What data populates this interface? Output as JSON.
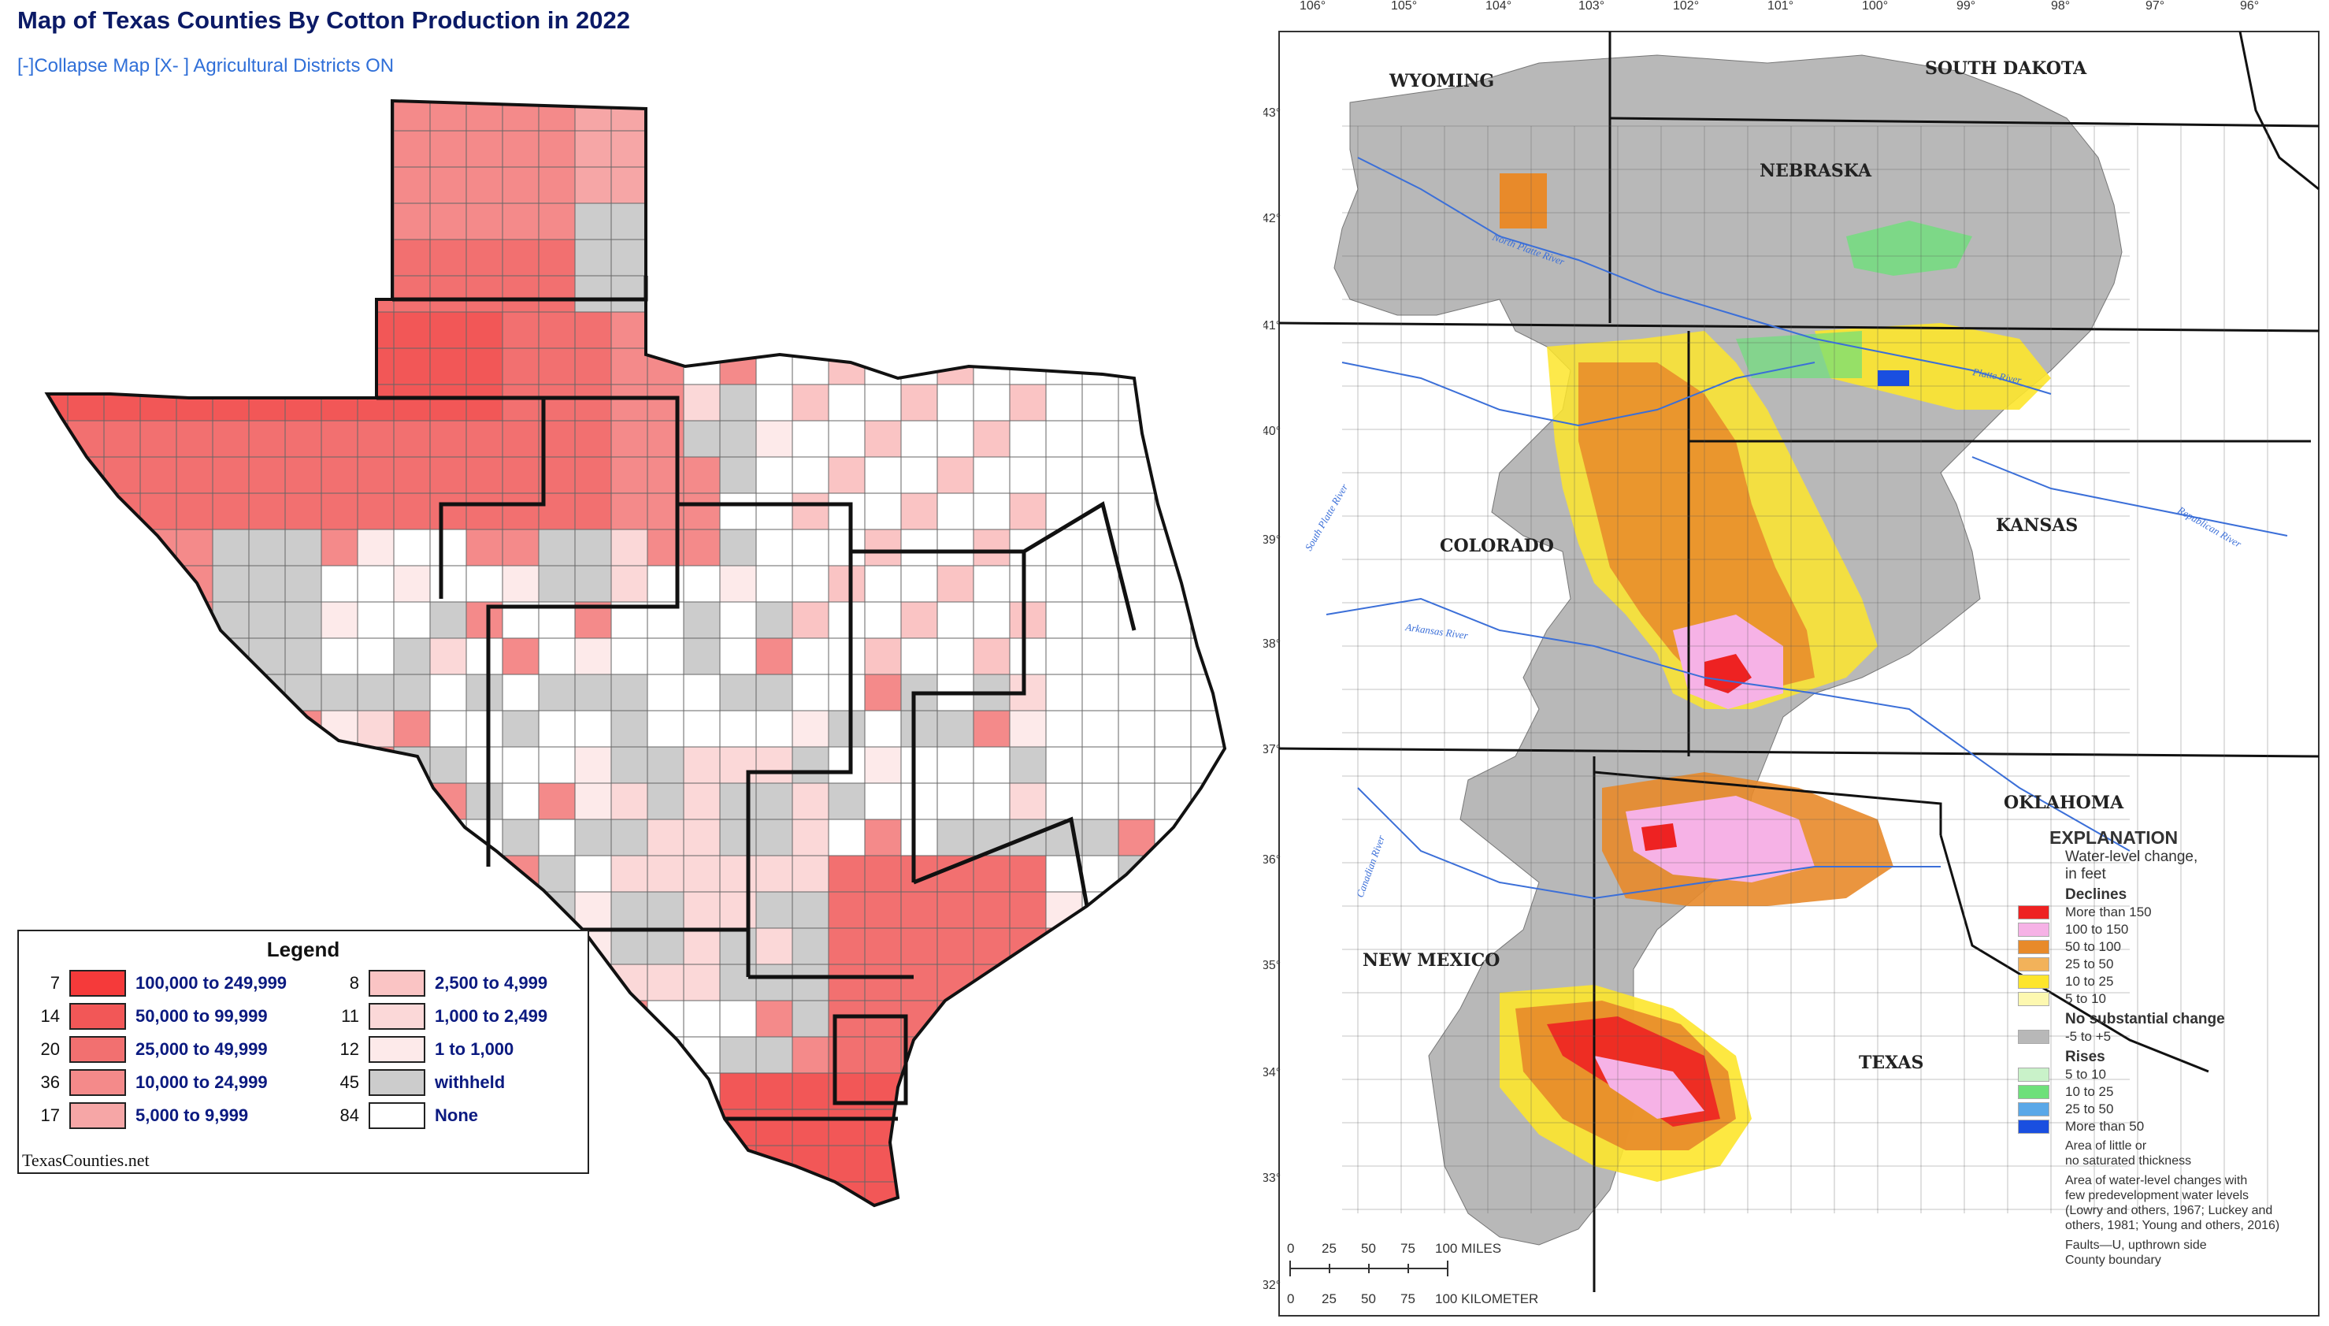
{
  "left": {
    "title": "Map of Texas Counties By Cotton Production in 2022",
    "controls": {
      "collapse": "[-]Collapse Map",
      "districts": "[X- ] Agricultural Districts ON"
    },
    "legend": {
      "title": "Legend",
      "source": "TexasCounties.net",
      "items": [
        {
          "count": "7",
          "label": "100,000 to 249,999",
          "color": "#f53a3a"
        },
        {
          "count": "14",
          "label": "50,000 to 99,999",
          "color": "#f25757"
        },
        {
          "count": "20",
          "label": "25,000 to 49,999",
          "color": "#f27070"
        },
        {
          "count": "36",
          "label": "10,000 to 24,999",
          "color": "#f48a8a"
        },
        {
          "count": "17",
          "label": "5,000 to 9,999",
          "color": "#f6a6a6"
        },
        {
          "count": "8",
          "label": "2,500 to 4,999",
          "color": "#fac4c4"
        },
        {
          "count": "11",
          "label": "1,000 to 2,499",
          "color": "#fbd8d8"
        },
        {
          "count": "12",
          "label": "1 to 1,000",
          "color": "#fdeaea"
        },
        {
          "count": "45",
          "label": "withheld",
          "color": "#cccccc"
        },
        {
          "count": "84",
          "label": "None",
          "color": "#ffffff"
        }
      ]
    }
  },
  "right": {
    "states": {
      "wyoming": "WYOMING",
      "south_dakota": "SOUTH DAKOTA",
      "nebraska": "NEBRASKA",
      "colorado": "COLORADO",
      "kansas": "KANSAS",
      "oklahoma": "OKLAHOMA",
      "new_mexico": "NEW MEXICO",
      "texas": "TEXAS"
    },
    "rivers": {
      "north_platte": "North Platte River",
      "platte": "Platte River",
      "south_platte": "South Platte River",
      "republican": "Republican River",
      "arkansas": "Arkansas River",
      "canadian": "Canadian River"
    },
    "lon_ticks": [
      "106°",
      "105°",
      "104°",
      "103°",
      "102°",
      "101°",
      "100°",
      "99°",
      "98°",
      "97°",
      "96°"
    ],
    "lat_ticks": [
      "43°",
      "42°",
      "41°",
      "40°",
      "39°",
      "38°",
      "37°",
      "36°",
      "35°",
      "34°",
      "33°",
      "32°"
    ],
    "explanation": {
      "title": "EXPLANATION",
      "subtitle_1": "Water-level change,",
      "subtitle_2": "in feet",
      "declines_label": "Declines",
      "declines": [
        {
          "label": "More than 150",
          "color": "#ee2222"
        },
        {
          "label": "100 to 150",
          "color": "#f6b2e6"
        },
        {
          "label": "50 to 100",
          "color": "#e88a2a"
        },
        {
          "label": "25 to 50",
          "color": "#f2b25a"
        },
        {
          "label": "10 to 25",
          "color": "#fde52c"
        },
        {
          "label": "5 to 10",
          "color": "#fdf8b0"
        }
      ],
      "no_change_label": "No substantial change",
      "no_change": {
        "label": "-5 to +5",
        "color": "#b8b8b8"
      },
      "rises_label": "Rises",
      "rises": [
        {
          "label": "5 to 10",
          "color": "#c9f2c9"
        },
        {
          "label": "10 to 25",
          "color": "#6ee07a"
        },
        {
          "label": "25 to 50",
          "color": "#5aa8e8"
        },
        {
          "label": "More than 50",
          "color": "#1a4fe0"
        }
      ],
      "little_thickness_1": "Area of little or",
      "little_thickness_2": "no saturated thickness",
      "few_predev_1": "Area of water-level changes with",
      "few_predev_2": "few predevelopment water levels",
      "few_predev_3": "(Lowry and others, 1967; Luckey and",
      "few_predev_4": "others, 1981; Young and others, 2016)",
      "faults": "Faults—U, upthrown side",
      "county": "County boundary"
    },
    "scale": {
      "miles_ticks": [
        "0",
        "25",
        "50",
        "75",
        "100 MILES"
      ],
      "km_ticks": [
        "0",
        "25",
        "50",
        "75",
        "100 KILOMETER"
      ]
    }
  }
}
